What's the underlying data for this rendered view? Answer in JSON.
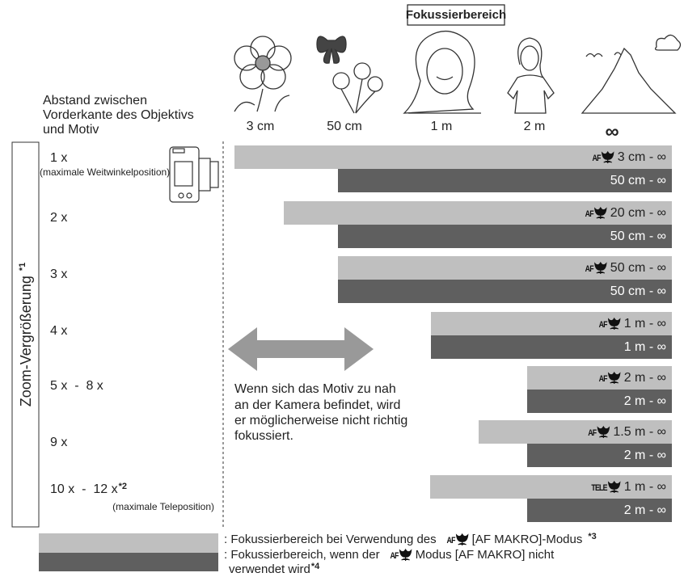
{
  "header": {
    "title": "Fokussierbereich"
  },
  "distance_caption": [
    "Abstand zwischen",
    "Vorderkante des Objektivs",
    "und Motiv"
  ],
  "distances": [
    "3 cm",
    "50 cm",
    "1 m",
    "2 m",
    "∞"
  ],
  "side_label": {
    "text": "Zoom-Vergrößerung",
    "note": "*1"
  },
  "rows": [
    {
      "zoom": "1 x",
      "zoom_note": "(maximale Weitwinkelposition)",
      "icon": "AF",
      "macro": "3 cm - ∞",
      "normal": "50 cm - ∞"
    },
    {
      "zoom": "2 x",
      "icon": "AF",
      "macro": "20 cm - ∞",
      "normal": "50 cm - ∞"
    },
    {
      "zoom": "3 x",
      "icon": "AF",
      "macro": "50 cm - ∞",
      "normal": "50 cm - ∞"
    },
    {
      "zoom": "4 x",
      "icon": "AF",
      "macro": "1 m - ∞",
      "normal": "1 m - ∞"
    },
    {
      "zoom": "5 x  -  8 x",
      "icon": "AF",
      "macro": "2 m - ∞",
      "normal": "2 m - ∞"
    },
    {
      "zoom": "9 x",
      "icon": "AF",
      "macro": "1.5 m - ∞",
      "normal": "2 m - ∞"
    },
    {
      "zoom": "10 x  -  12 x",
      "zoom_sup": "*2",
      "zoom_note": "(maximale Teleposition)",
      "icon": "TELE",
      "macro": "1 m - ∞",
      "normal": "2 m - ∞"
    }
  ],
  "warning": [
    "Wenn sich das Motiv zu nah",
    "an der Kamera befindet, wird",
    "er möglicherweise nicht richtig",
    "fokussiert."
  ],
  "legend": [
    {
      "before": ": Fokussierbereich bei Verwendung des",
      "icon": "AF",
      "after": "[AF MAKRO]-Modus",
      "note": "*3"
    },
    {
      "before": ": Fokussierbereich, wenn der",
      "icon": "AF",
      "after": "Modus [AF MAKRO] nicht",
      "line2": "verwendet wird",
      "note": "*4"
    }
  ]
}
